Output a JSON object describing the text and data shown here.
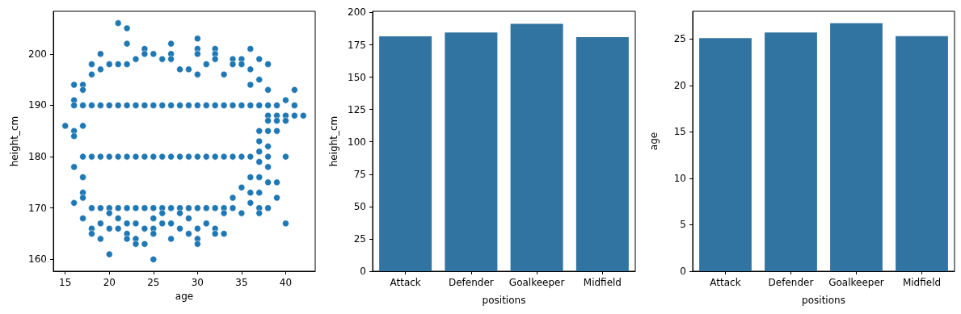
{
  "chart_data": [
    {
      "type": "scatter",
      "xlabel": "age",
      "ylabel": "height_cm",
      "color": "#1f77b4",
      "marker": "circle",
      "x": [
        15,
        16,
        16,
        16,
        16,
        16,
        16,
        16,
        17,
        17,
        17,
        17,
        17,
        17,
        17,
        17,
        17,
        18,
        18,
        18,
        18,
        18,
        18,
        18,
        19,
        19,
        19,
        19,
        19,
        19,
        19,
        20,
        20,
        20,
        20,
        20,
        20,
        20,
        21,
        21,
        21,
        21,
        21,
        21,
        21,
        22,
        22,
        22,
        22,
        22,
        22,
        22,
        22,
        22,
        23,
        23,
        23,
        23,
        23,
        23,
        23,
        24,
        24,
        24,
        24,
        24,
        24,
        24,
        25,
        25,
        25,
        25,
        25,
        25,
        25,
        25,
        26,
        26,
        26,
        26,
        26,
        26,
        27,
        27,
        27,
        27,
        27,
        27,
        27,
        27,
        28,
        28,
        28,
        28,
        28,
        28,
        29,
        29,
        29,
        29,
        29,
        29,
        30,
        30,
        30,
        30,
        30,
        30,
        30,
        30,
        30,
        30,
        31,
        31,
        31,
        31,
        31,
        32,
        32,
        32,
        32,
        32,
        32,
        32,
        32,
        33,
        33,
        33,
        33,
        33,
        33,
        34,
        34,
        34,
        34,
        34,
        34,
        35,
        35,
        35,
        35,
        35,
        35,
        36,
        36,
        36,
        36,
        36,
        36,
        36,
        36,
        37,
        37,
        37,
        37,
        37,
        37,
        37,
        37,
        37,
        37,
        37,
        38,
        38,
        38,
        38,
        38,
        38,
        38,
        38,
        38,
        38,
        38,
        39,
        39,
        39,
        39,
        39,
        39,
        40,
        40,
        40,
        40,
        40,
        41,
        41,
        41,
        42
      ],
      "values": [
        186,
        194,
        191,
        190,
        185,
        184,
        178,
        171,
        194,
        193,
        190,
        186,
        180,
        176,
        173,
        172,
        168,
        198,
        196,
        190,
        180,
        170,
        166,
        165,
        200,
        197,
        190,
        180,
        170,
        167,
        164,
        198,
        190,
        180,
        170,
        169,
        166,
        161,
        206,
        198,
        190,
        180,
        170,
        168,
        166,
        205,
        202,
        198,
        190,
        180,
        170,
        167,
        165,
        164,
        199,
        190,
        180,
        170,
        167,
        164,
        163,
        201,
        200,
        190,
        180,
        170,
        166,
        163,
        200,
        190,
        180,
        170,
        168,
        166,
        165,
        160,
        199,
        190,
        180,
        170,
        169,
        167,
        202,
        200,
        199,
        190,
        180,
        170,
        167,
        164,
        197,
        190,
        180,
        170,
        169,
        166,
        197,
        190,
        180,
        170,
        168,
        165,
        203,
        201,
        200,
        196,
        190,
        180,
        170,
        166,
        164,
        163,
        198,
        190,
        180,
        170,
        167,
        201,
        200,
        199,
        190,
        180,
        170,
        166,
        165,
        196,
        190,
        180,
        170,
        169,
        165,
        199,
        198,
        190,
        180,
        172,
        170,
        199,
        198,
        190,
        180,
        174,
        169,
        201,
        197,
        194,
        190,
        180,
        176,
        173,
        171,
        199,
        195,
        190,
        185,
        183,
        181,
        179,
        176,
        173,
        170,
        169,
        198,
        193,
        190,
        188,
        187,
        185,
        182,
        180,
        178,
        175,
        170,
        190,
        188,
        187,
        185,
        175,
        172,
        191,
        188,
        187,
        180,
        167,
        193,
        190,
        188,
        188
      ],
      "xlim": [
        13.65,
        43.35
      ],
      "ylim": [
        157.7,
        208.3
      ],
      "xticks": [
        15,
        20,
        25,
        30,
        35,
        40
      ],
      "yticks": [
        160,
        170,
        180,
        190,
        200
      ],
      "grid": false
    },
    {
      "type": "bar",
      "xlabel": "positions",
      "ylabel": "height_cm",
      "color": "#3274a1",
      "categories": [
        "Attack",
        "Defender",
        "Goalkeeper",
        "Midfield"
      ],
      "values": [
        181.5,
        184.6,
        191.3,
        180.9
      ],
      "ylim": [
        0,
        200.9
      ],
      "yticks": [
        0,
        25,
        50,
        75,
        100,
        125,
        150,
        175,
        200
      ],
      "grid": false
    },
    {
      "type": "bar",
      "xlabel": "positions",
      "ylabel": "age",
      "color": "#3274a1",
      "categories": [
        "Attack",
        "Defender",
        "Goalkeeper",
        "Midfield"
      ],
      "values": [
        25.1,
        25.7,
        26.7,
        25.3
      ],
      "ylim": [
        0,
        27.98
      ],
      "yticks": [
        0,
        5,
        10,
        15,
        20,
        25
      ],
      "grid": false
    }
  ]
}
